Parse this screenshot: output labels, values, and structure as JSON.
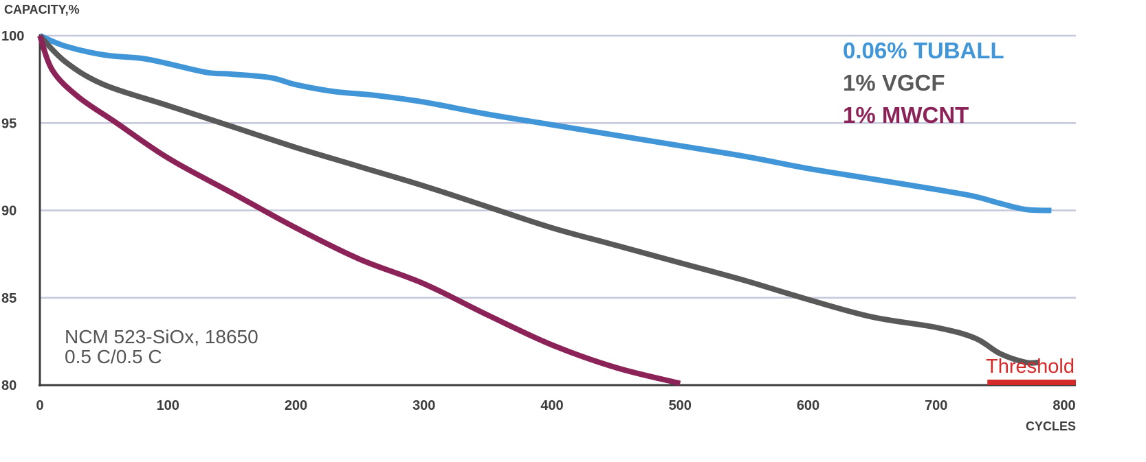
{
  "chart_data": {
    "type": "line",
    "ylabel": "CAPACITY,%",
    "xlabel": "CYCLES",
    "xlim": [
      0,
      800
    ],
    "ylim": [
      80,
      100
    ],
    "xticks": [
      "0",
      "100",
      "200",
      "300",
      "400",
      "500",
      "600",
      "700",
      "800"
    ],
    "yticks": [
      "80",
      "85",
      "90",
      "95",
      "100"
    ],
    "grid": "horizontal",
    "legend_position": "top-right",
    "colors": {
      "grid": "#c5c8dc",
      "axis": "#3d3d3d",
      "threshold": "#d52a2a"
    },
    "series": [
      {
        "name": "0.06% TUBALL",
        "color": "#4196d8",
        "x": [
          0,
          20,
          50,
          80,
          100,
          130,
          150,
          180,
          200,
          230,
          260,
          300,
          350,
          400,
          450,
          500,
          550,
          600,
          650,
          700,
          730,
          750,
          770,
          790
        ],
        "y": [
          100,
          99.4,
          98.9,
          98.7,
          98.4,
          97.9,
          97.8,
          97.6,
          97.2,
          96.8,
          96.6,
          96.2,
          95.5,
          94.9,
          94.3,
          93.7,
          93.1,
          92.4,
          91.8,
          91.2,
          90.8,
          90.4,
          90.05,
          90.0
        ]
      },
      {
        "name": "1% VGCF",
        "color": "#595959",
        "x": [
          0,
          20,
          50,
          100,
          150,
          200,
          250,
          300,
          350,
          400,
          450,
          500,
          550,
          600,
          650,
          700,
          730,
          750,
          770,
          780
        ],
        "y": [
          100,
          98.5,
          97.2,
          96.0,
          94.8,
          93.6,
          92.5,
          91.4,
          90.2,
          89.0,
          88.0,
          87.0,
          86.0,
          84.9,
          83.9,
          83.3,
          82.7,
          81.8,
          81.3,
          81.3
        ]
      },
      {
        "name": "1% MWCNT",
        "color": "#8c2358",
        "x": [
          0,
          10,
          30,
          60,
          100,
          150,
          200,
          250,
          300,
          350,
          400,
          450,
          500
        ],
        "y": [
          100,
          98.0,
          96.5,
          95.0,
          93.0,
          91.0,
          89.0,
          87.2,
          85.8,
          84.0,
          82.3,
          81.0,
          80.1
        ]
      }
    ],
    "threshold": {
      "label": "Threshold",
      "x_start": 740,
      "x_end": 800,
      "y": 80
    },
    "annotation": [
      "NCM 523-SiOx, 18650",
      "0.5 C/0.5 C"
    ]
  }
}
